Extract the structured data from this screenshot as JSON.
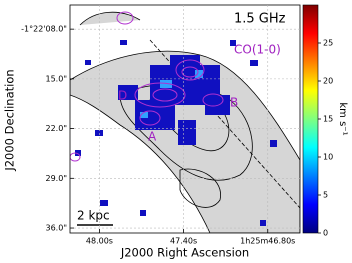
{
  "chart_data": {
    "type": "map",
    "xlabel": "J2000 Right Ascension",
    "ylabel": "J2000 Declination",
    "xlim": [
      48.21,
      46.57
    ],
    "xticks": [
      {
        "value": 48.0,
        "label": "48.00s"
      },
      {
        "value": 47.4,
        "label": "47.40s"
      },
      {
        "value": 46.8,
        "label": "1h25m46.80s"
      }
    ],
    "ylim": [
      4.6,
      36.7
    ],
    "yticks": [
      {
        "value": 8,
        "label": "-1°22'08.0\""
      },
      {
        "value": 15,
        "label": "15.0\""
      },
      {
        "value": 22,
        "label": "22.0\""
      },
      {
        "value": 29,
        "label": "29.0\""
      },
      {
        "value": 36,
        "label": "36.0\""
      }
    ],
    "grid": true,
    "annotations": [
      "1.5 GHz",
      "CO(1-0)",
      "D",
      "B",
      "A",
      "2 kpc"
    ],
    "colorbar": {
      "label": "km s⁻¹",
      "lim": [
        0,
        30
      ],
      "ticks": [
        0,
        5,
        10,
        15,
        20,
        25
      ],
      "colormap": "jet"
    }
  }
}
